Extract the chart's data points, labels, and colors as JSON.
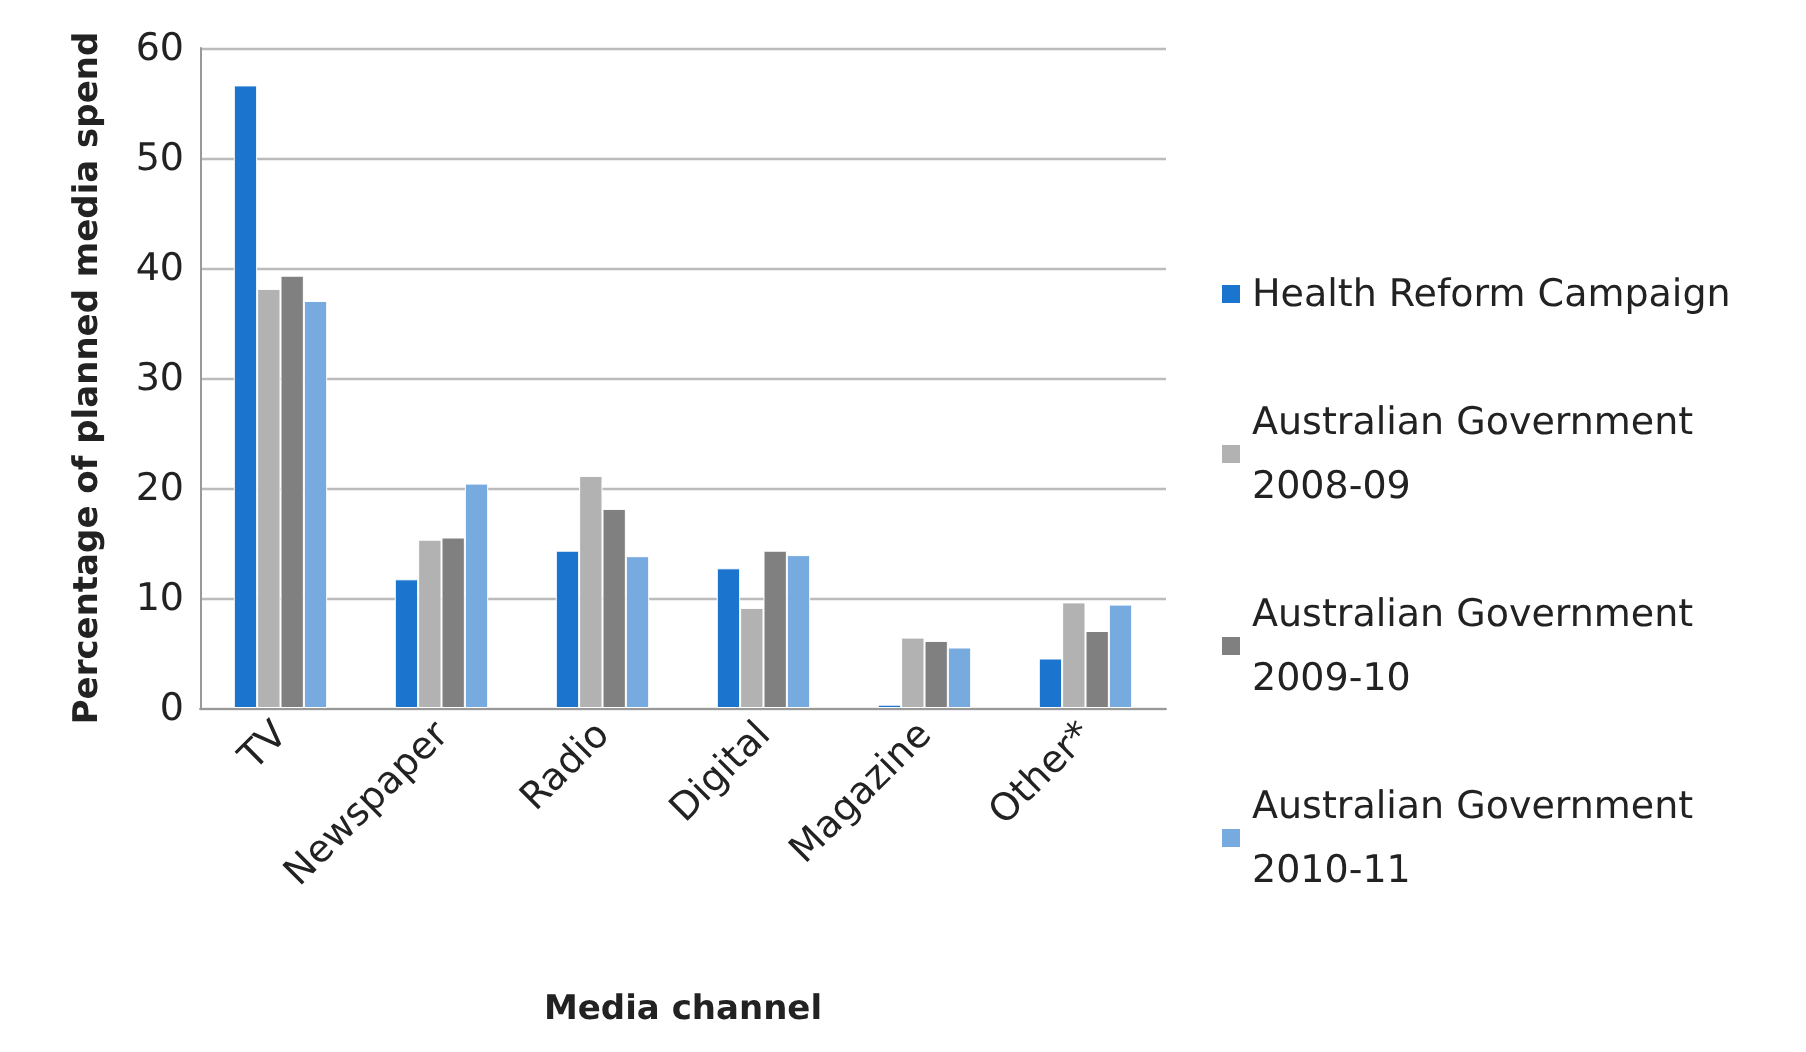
{
  "chart_data": {
    "type": "bar",
    "xlabel": "Media channel",
    "ylabel": "Percentage of planned media spend",
    "categories": [
      "TV",
      "Newspaper",
      "Radio",
      "Digital",
      "Magazine",
      "Other*"
    ],
    "series": [
      {
        "name": "Health Reform Campaign",
        "color": "#1b75cf",
        "values": [
          56.6,
          11.7,
          14.3,
          12.7,
          0.3,
          4.5
        ]
      },
      {
        "name": "Australian Government 2008-09",
        "color": "#b2b2b2",
        "values": [
          38.1,
          15.3,
          21.1,
          9.1,
          6.4,
          9.6
        ]
      },
      {
        "name": "Australian Government 2009-10",
        "color": "#808080",
        "values": [
          39.3,
          15.5,
          18.1,
          14.3,
          6.1,
          7.0
        ]
      },
      {
        "name": "Australian Government 2010-11",
        "color": "#77abe0",
        "values": [
          37.0,
          20.4,
          13.8,
          13.9,
          5.5,
          9.4
        ]
      }
    ],
    "ylim": [
      0,
      60
    ],
    "yticks": [
      0,
      10,
      20,
      30,
      40,
      50,
      60
    ],
    "grid": "y",
    "legend": "right"
  }
}
